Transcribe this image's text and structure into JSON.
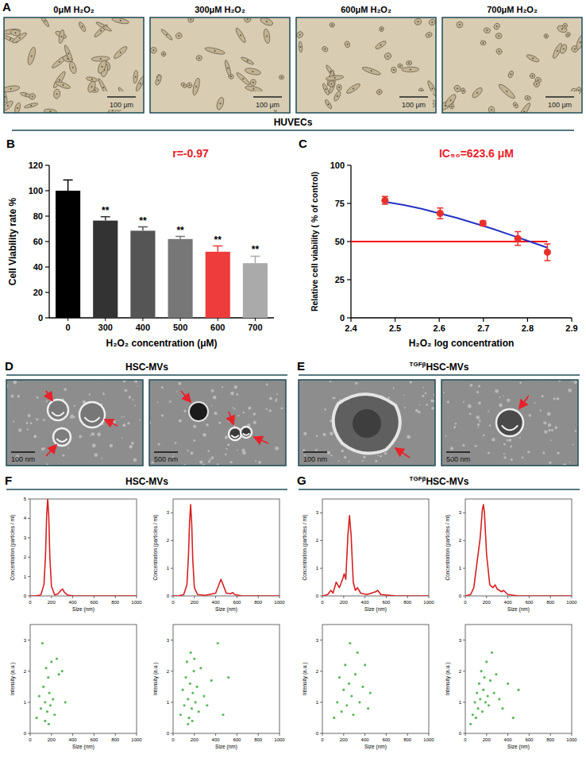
{
  "figure": {
    "A": {
      "letter": "A",
      "titles": [
        "0μM H₂O₂",
        "300μM H₂O₂",
        "600μM H₂O₂",
        "700μM H₂O₂"
      ],
      "scale_bar": "100 μm",
      "caption": "HUVECs"
    },
    "B": {
      "letter": "B"
    },
    "C": {
      "letter": "C"
    },
    "D": {
      "letter": "D",
      "title": "HSC-MVs",
      "scale_bars": [
        "100 nm",
        "500 nm"
      ]
    },
    "E": {
      "letter": "E",
      "title_superscript": "TGFβ",
      "title": "HSC-MVs",
      "scale_bars": [
        "100 nm",
        "500 nm"
      ]
    },
    "F": {
      "letter": "F",
      "title": "HSC-MVs"
    },
    "G": {
      "letter": "G",
      "title_superscript": "TGFβ",
      "title": "HSC-MVs"
    }
  },
  "chart_data": [
    {
      "type": "bar",
      "categories": [
        "0",
        "300",
        "400",
        "500",
        "600",
        "700"
      ],
      "values": [
        100,
        76.5,
        68.5,
        62,
        52,
        43
      ],
      "errors": [
        8.5,
        3,
        3,
        2,
        4.5,
        5.5
      ],
      "colors": [
        "#000000",
        "#333333",
        "#555555",
        "#777777",
        "#ee3b3b",
        "#aaaaaa"
      ],
      "significance": [
        null,
        "**",
        "**",
        "**",
        "**",
        "**"
      ],
      "x_label": "H₂O₂ concentration (μM)",
      "y_label": "Cell Viability rate %",
      "annotation": "r=-0.97",
      "ylim": [
        0,
        120
      ],
      "yticks": [
        0,
        20,
        40,
        60,
        80,
        100,
        120
      ],
      "grid": false
    },
    {
      "type": "line",
      "series": [
        {
          "type": "scatter",
          "marker": "circle",
          "color": "#e8302a",
          "x": [
            2.477,
            2.602,
            2.699,
            2.778,
            2.845
          ],
          "values": [
            77,
            68.5,
            62,
            52,
            43
          ],
          "errors": [
            2.5,
            3.5,
            1.5,
            4.5,
            5.5
          ]
        },
        {
          "type": "line",
          "color": "#2533c4",
          "x": [
            2.477,
            2.52,
            2.56,
            2.6,
            2.64,
            2.68,
            2.72,
            2.76,
            2.8,
            2.845
          ],
          "values": [
            76,
            74,
            71.5,
            68.5,
            65.5,
            62,
            58.5,
            54.5,
            50.5,
            46
          ]
        }
      ],
      "reference_line": {
        "value": 50,
        "x": [
          2.4,
          2.845
        ],
        "color": "#ff0000"
      },
      "annotation": "IC₅₀=623.6 μM",
      "x_label": "H₂O₂ log concentration",
      "y_label": "Relative cell viability ( % of control)",
      "xlim": [
        2.4,
        2.9
      ],
      "xticks": [
        2.4,
        2.5,
        2.6,
        2.7,
        2.8,
        2.9
      ],
      "ylim": [
        0,
        100
      ],
      "yticks": [
        0,
        25,
        50,
        75,
        100
      ],
      "grid": false
    },
    {
      "type": "line",
      "color": "#d62020",
      "x": [
        0,
        50,
        100,
        130,
        145,
        155,
        165,
        175,
        185,
        200,
        230,
        260,
        290,
        305,
        320,
        350,
        400,
        500,
        600,
        700,
        800,
        900,
        1000
      ],
      "values": [
        0,
        0,
        0.05,
        0.6,
        2.2,
        4.2,
        5.0,
        4.1,
        2.0,
        0.5,
        0.05,
        0.1,
        0.3,
        0.35,
        0.2,
        0.05,
        0,
        0,
        0,
        0,
        0,
        0,
        0
      ],
      "x_label": "Size (nm)",
      "y_label": "Concentration (particles / ml)",
      "xlim": [
        0,
        1000
      ],
      "xticks": [
        0,
        200,
        400,
        600,
        800,
        1000
      ],
      "ylim": [
        0,
        5
      ],
      "yticks": [
        0,
        1,
        2,
        3,
        4,
        5
      ]
    },
    {
      "type": "line",
      "color": "#d62020",
      "x": [
        0,
        50,
        100,
        130,
        145,
        155,
        165,
        175,
        185,
        200,
        230,
        300,
        400,
        430,
        450,
        470,
        500,
        540,
        560,
        580,
        650,
        800,
        1000
      ],
      "values": [
        0,
        0,
        0.05,
        0.4,
        1.5,
        2.7,
        3.3,
        2.6,
        1.3,
        0.3,
        0.05,
        0.02,
        0.1,
        0.4,
        0.6,
        0.4,
        0.1,
        0.08,
        0.12,
        0.05,
        0,
        0,
        0
      ],
      "x_label": "Size (nm)",
      "y_label": "Concentration (particles / ml)",
      "xlim": [
        0,
        1000
      ],
      "xticks": [
        0,
        200,
        400,
        600,
        800,
        1000
      ],
      "ylim": [
        0,
        3.5
      ],
      "yticks": [
        0,
        1,
        2,
        3
      ]
    },
    {
      "type": "line",
      "color": "#d62020",
      "x": [
        0,
        50,
        80,
        100,
        130,
        160,
        190,
        205,
        220,
        240,
        255,
        270,
        290,
        310,
        330,
        360,
        420,
        500,
        520,
        550,
        700,
        1000
      ],
      "values": [
        0,
        0.05,
        0.2,
        0.1,
        0.5,
        0.3,
        0.6,
        0.8,
        0.6,
        2.2,
        2.9,
        2.2,
        0.5,
        0.2,
        0.3,
        0.1,
        0.05,
        0.15,
        0.2,
        0.05,
        0,
        0
      ],
      "x_label": "Size (nm)",
      "y_label": "Concentration (particles / ml)",
      "xlim": [
        0,
        1000
      ],
      "xticks": [
        0,
        200,
        400,
        600,
        800,
        1000
      ],
      "ylim": [
        0,
        3.5
      ],
      "yticks": [
        0,
        1,
        2,
        3
      ]
    },
    {
      "type": "line",
      "color": "#d62020",
      "x": [
        0,
        50,
        80,
        100,
        120,
        140,
        160,
        170,
        180,
        200,
        230,
        260,
        280,
        300,
        340,
        360,
        400,
        500,
        700,
        1000
      ],
      "values": [
        0,
        0.05,
        0.3,
        0.9,
        1.5,
        2.1,
        3.1,
        3.3,
        3.0,
        1.5,
        0.4,
        0.3,
        0.4,
        0.25,
        0.15,
        0.2,
        0.05,
        0,
        0,
        0
      ],
      "x_label": "Size (nm)",
      "y_label": "Concentration (particles / ml)",
      "xlim": [
        0,
        1000
      ],
      "xticks": [
        0,
        200,
        400,
        600,
        800,
        1000
      ],
      "ylim": [
        0,
        3.5
      ],
      "yticks": [
        0,
        1,
        2,
        3
      ]
    },
    {
      "type": "scatter",
      "marker": "circle",
      "color": "#5cb85c",
      "x": [
        60,
        85,
        100,
        115,
        125,
        140,
        150,
        160,
        170,
        180,
        190,
        200,
        215,
        230,
        250,
        270,
        300,
        330,
        140,
        175
      ],
      "values": [
        0.5,
        1.2,
        0.8,
        2.9,
        1.5,
        1.0,
        2.1,
        0.7,
        1.8,
        1.3,
        0.9,
        2.3,
        1.1,
        0.6,
        2.4,
        1.9,
        2.0,
        1.0,
        0.4,
        0.3
      ],
      "x_label": "Size (nm)",
      "y_label": "Intensity (a.u.)",
      "xlim": [
        0,
        1000
      ],
      "xticks": [
        0,
        200,
        400,
        600,
        800,
        1000
      ],
      "ylim": [
        0,
        3.5
      ],
      "yticks": [
        0,
        1,
        2,
        3
      ]
    },
    {
      "type": "scatter",
      "marker": "circle",
      "color": "#5cb85c",
      "x": [
        70,
        90,
        105,
        120,
        130,
        140,
        150,
        160,
        165,
        175,
        185,
        195,
        210,
        225,
        240,
        260,
        290,
        320,
        360,
        420,
        470,
        520,
        140,
        180,
        200
      ],
      "values": [
        0.6,
        1.4,
        0.9,
        1.8,
        2.3,
        1.1,
        0.5,
        1.6,
        2.6,
        0.8,
        1.3,
        2.0,
        1.0,
        1.5,
        0.7,
        2.1,
        1.2,
        0.9,
        1.7,
        2.9,
        0.6,
        1.8,
        0.3,
        0.4,
        2.4
      ],
      "x_label": "Size (nm)",
      "y_label": "Intensity (a.u.)",
      "xlim": [
        0,
        1000
      ],
      "xticks": [
        0,
        200,
        400,
        600,
        800,
        1000
      ],
      "ylim": [
        0,
        3.5
      ],
      "yticks": [
        0,
        1,
        2,
        3
      ]
    },
    {
      "type": "scatter",
      "marker": "circle",
      "color": "#5cb85c",
      "x": [
        110,
        140,
        160,
        180,
        200,
        215,
        230,
        250,
        260,
        275,
        290,
        310,
        330,
        350,
        380,
        400,
        430,
        450
      ],
      "values": [
        0.5,
        1.0,
        1.8,
        0.7,
        1.4,
        2.2,
        0.9,
        1.6,
        2.9,
        1.2,
        0.6,
        1.9,
        2.6,
        1.0,
        1.5,
        2.2,
        0.8,
        1.3
      ],
      "x_label": "Size (nm)",
      "y_label": "Intensity (a.u.)",
      "xlim": [
        0,
        1000
      ],
      "xticks": [
        0,
        200,
        400,
        600,
        800,
        1000
      ],
      "ylim": [
        0,
        3.5
      ],
      "yticks": [
        0,
        1,
        2,
        3
      ]
    },
    {
      "type": "scatter",
      "marker": "circle",
      "color": "#5cb85c",
      "x": [
        50,
        70,
        90,
        100,
        110,
        120,
        130,
        140,
        150,
        160,
        170,
        180,
        190,
        200,
        210,
        220,
        235,
        250,
        270,
        290,
        320,
        350,
        400,
        450,
        500
      ],
      "values": [
        0.3,
        0.6,
        1.0,
        0.5,
        1.3,
        0.8,
        1.6,
        1.1,
        2.0,
        0.7,
        1.4,
        1.8,
        1.0,
        2.3,
        1.2,
        0.9,
        1.7,
        2.6,
        1.3,
        1.9,
        1.1,
        0.8,
        1.6,
        0.5,
        1.4
      ],
      "x_label": "Size (nm)",
      "y_label": "Intensity (a.u.)",
      "xlim": [
        0,
        1000
      ],
      "xticks": [
        0,
        200,
        400,
        600,
        800,
        1000
      ],
      "ylim": [
        0,
        3.5
      ],
      "yticks": [
        0,
        1,
        2,
        3
      ]
    }
  ]
}
